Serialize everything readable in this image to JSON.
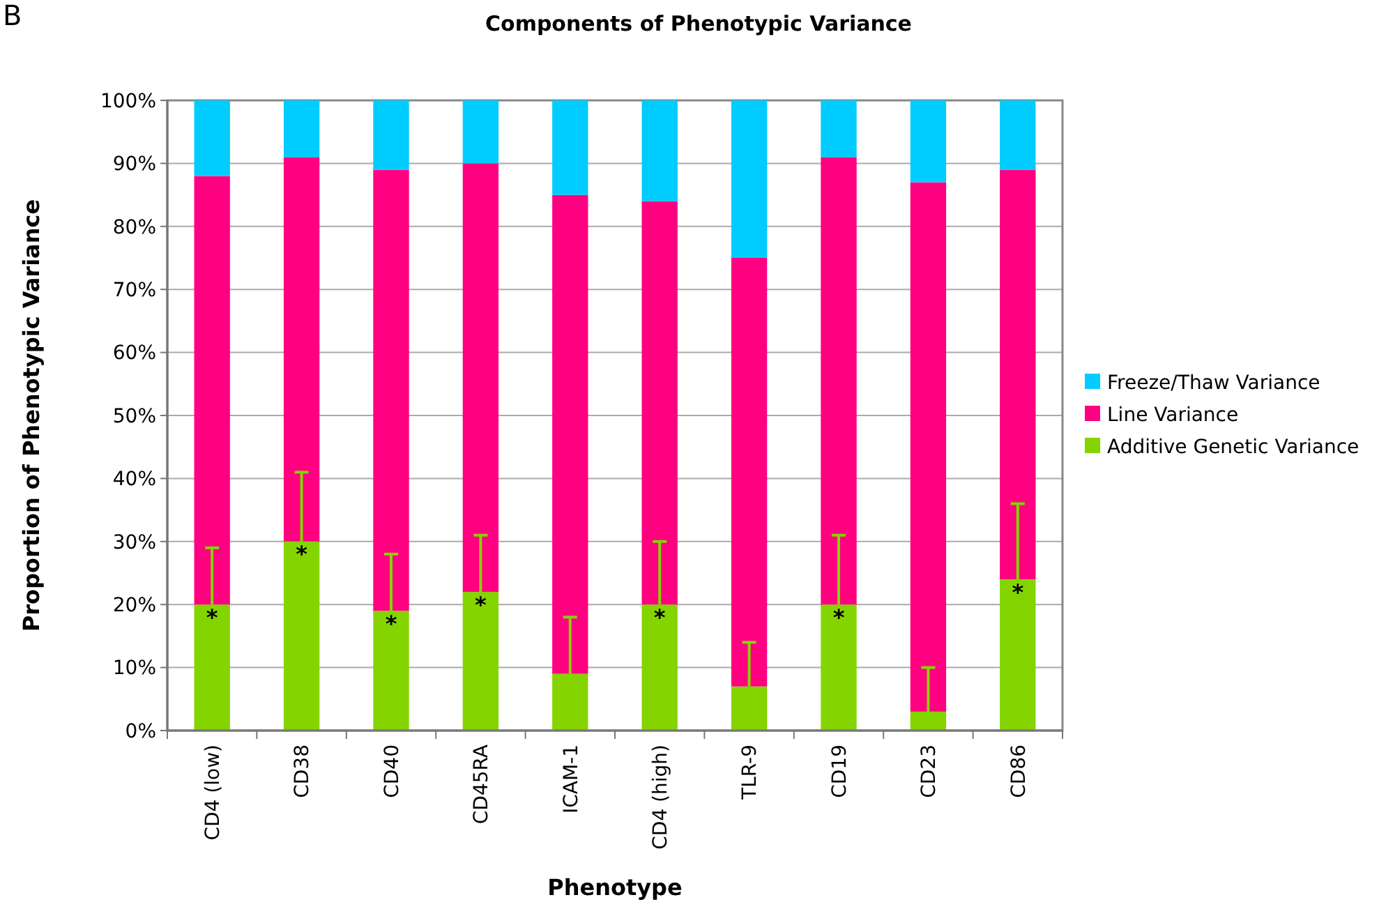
{
  "chart_data": {
    "type": "bar",
    "title": "Components of Phenotypic Variance",
    "xlabel": "Phenotype",
    "ylabel": "Proportion of Phenotypic Variance",
    "categories": [
      "CD4 (low)",
      "CD38",
      "CD40",
      "CD45RA",
      "ICAM-1",
      "CD4 (high)",
      "TLR-9",
      "CD19",
      "CD23",
      "CD86"
    ],
    "stacked": true,
    "grid": "y",
    "legend": "right",
    "ylim": [
      0,
      100
    ],
    "yticks": [
      {
        "value": 0,
        "label": "0%"
      },
      {
        "value": 10,
        "label": "10%"
      },
      {
        "value": 20,
        "label": "20%"
      },
      {
        "value": 30,
        "label": "30%"
      },
      {
        "value": 40,
        "label": "40%"
      },
      {
        "value": 50,
        "label": "50%"
      },
      {
        "value": 60,
        "label": "60%"
      },
      {
        "value": 70,
        "label": "70%"
      },
      {
        "value": 80,
        "label": "80%"
      },
      {
        "value": 90,
        "label": "90%"
      },
      {
        "value": 100,
        "label": "100%"
      }
    ],
    "series": [
      {
        "name": "Additive Genetic Variance",
        "color": "#84d400",
        "values": [
          20,
          30,
          19,
          22,
          9,
          20,
          7,
          20,
          3,
          24
        ],
        "errors": [
          [
            20,
            29
          ],
          [
            30,
            41
          ],
          [
            19,
            28
          ],
          [
            22,
            31
          ],
          [
            9,
            18
          ],
          [
            20,
            30
          ],
          [
            7,
            14
          ],
          [
            20,
            31
          ],
          [
            3,
            10
          ],
          [
            24,
            36
          ]
        ]
      },
      {
        "name": "Line Variance",
        "color": "#ff0080",
        "values": [
          68,
          61,
          70,
          68,
          76,
          64,
          68,
          71,
          84,
          65
        ]
      },
      {
        "name": "Freeze/Thaw Variance",
        "color": "#00ccff",
        "values": [
          12,
          9,
          11,
          10,
          15,
          16,
          25,
          9,
          13,
          11
        ]
      }
    ],
    "annotations": [
      "B",
      {
        "text": "*",
        "x": "CD4 (low)",
        "y": 20
      },
      {
        "text": "*",
        "x": "CD38",
        "y": 30
      },
      {
        "text": "*",
        "x": "CD40",
        "y": 19
      },
      {
        "text": "*",
        "x": "CD45RA",
        "y": 22
      },
      {
        "text": "*",
        "x": "CD4 (high)",
        "y": 20
      },
      {
        "text": "*",
        "x": "CD19",
        "y": 20
      },
      {
        "text": "*",
        "x": "CD86",
        "y": 24
      }
    ]
  }
}
